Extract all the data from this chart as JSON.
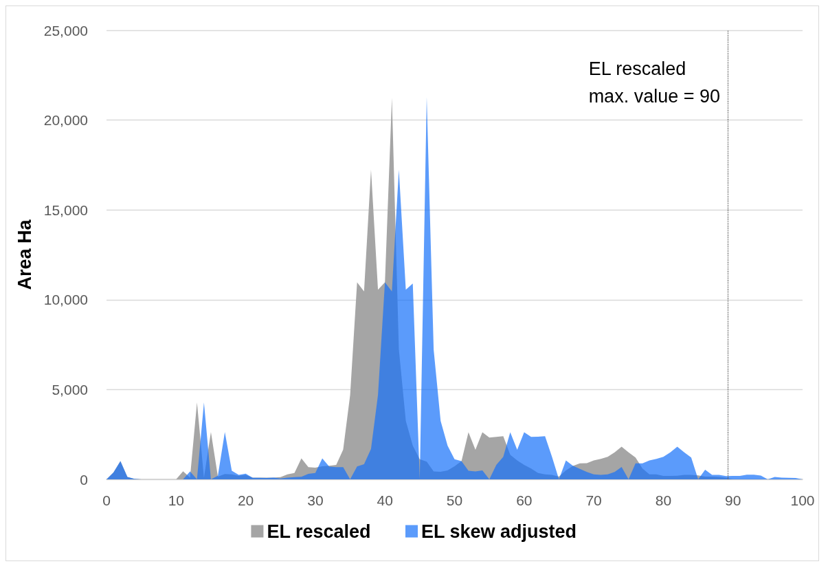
{
  "chart_data": {
    "type": "area",
    "ylabel": "Area Ha",
    "x": [
      0,
      1,
      2,
      3,
      4,
      5,
      6,
      7,
      8,
      9,
      10,
      11,
      12,
      13,
      14,
      15,
      16,
      17,
      18,
      19,
      20,
      21,
      22,
      23,
      24,
      25,
      26,
      27,
      28,
      29,
      30,
      31,
      32,
      33,
      34,
      35,
      36,
      37,
      38,
      39,
      40,
      41,
      42,
      43,
      44,
      45,
      46,
      47,
      48,
      49,
      50,
      51,
      52,
      53,
      54,
      55,
      56,
      57,
      58,
      59,
      60,
      61,
      62,
      63,
      64,
      65,
      66,
      67,
      68,
      69,
      70,
      71,
      72,
      73,
      74,
      75,
      76,
      77,
      78,
      79,
      80,
      81,
      82,
      83,
      84,
      85,
      86,
      87,
      88,
      89,
      90,
      91,
      92,
      93,
      94,
      95,
      96,
      97,
      98,
      99,
      100
    ],
    "series": [
      {
        "name": "EL rescaled",
        "color": "#a5a5a5",
        "values": [
          0,
          380,
          1010,
          130,
          30,
          0,
          0,
          0,
          0,
          0,
          0,
          450,
          100,
          4280,
          100,
          2630,
          150,
          300,
          280,
          200,
          250,
          100,
          100,
          100,
          100,
          120,
          280,
          350,
          1170,
          680,
          650,
          730,
          760,
          800,
          1660,
          4690,
          10970,
          10460,
          17240,
          10560,
          10970,
          21240,
          7250,
          3250,
          1880,
          1120,
          990,
          440,
          420,
          500,
          730,
          1010,
          2620,
          1650,
          2620,
          2330,
          2360,
          2400,
          1370,
          1050,
          800,
          600,
          350,
          280,
          250,
          150,
          500,
          750,
          890,
          900,
          1050,
          1140,
          1250,
          1500,
          1820,
          1500,
          1220,
          600,
          280,
          280,
          190,
          190,
          200,
          250,
          250,
          220,
          150,
          150,
          130,
          100,
          0,
          null,
          null,
          null,
          null,
          null,
          null,
          null,
          null,
          null,
          null
        ]
      },
      {
        "name": "EL skew adjusted",
        "color": "#5b9bfb",
        "values": [
          0,
          380,
          1010,
          130,
          30,
          0,
          0,
          0,
          0,
          0,
          0,
          0,
          440,
          0,
          4280,
          0,
          200,
          2630,
          480,
          250,
          320,
          90,
          90,
          80,
          100,
          50,
          100,
          120,
          140,
          310,
          350,
          1170,
          710,
          680,
          680,
          0,
          720,
          840,
          1690,
          4690,
          10970,
          10460,
          17240,
          10560,
          10900,
          0,
          21280,
          7220,
          3250,
          1880,
          1120,
          1010,
          480,
          440,
          500,
          0,
          800,
          1250,
          2620,
          1650,
          2620,
          2360,
          2370,
          2400,
          1250,
          0,
          1050,
          760,
          580,
          410,
          280,
          250,
          280,
          410,
          690,
          0,
          890,
          890,
          1050,
          1140,
          1250,
          1500,
          1820,
          1500,
          1220,
          0,
          540,
          250,
          250,
          180,
          190,
          190,
          260,
          260,
          210,
          0,
          130,
          100,
          90,
          80,
          0
        ]
      }
    ],
    "xlim": [
      0,
      100
    ],
    "xticks": [
      0,
      10,
      20,
      30,
      40,
      50,
      60,
      70,
      80,
      90,
      100
    ],
    "ylim": [
      0,
      25000
    ],
    "yticks": [
      0,
      {
        "value": 5000,
        "label": "5,000"
      },
      {
        "value": 10000,
        "label": "10,000"
      },
      {
        "value": 15000,
        "label": "15,000"
      },
      {
        "value": 20000,
        "label": "20,000"
      },
      {
        "value": 25000,
        "label": "25,000"
      }
    ],
    "grid": "y",
    "legend": "bottom",
    "ref_lines": [
      {
        "axis": "x",
        "value": 89.3,
        "color": "#595959",
        "line_style": "dotted"
      }
    ],
    "annotations": [
      "EL rescaled\nmax. value = 90"
    ]
  }
}
